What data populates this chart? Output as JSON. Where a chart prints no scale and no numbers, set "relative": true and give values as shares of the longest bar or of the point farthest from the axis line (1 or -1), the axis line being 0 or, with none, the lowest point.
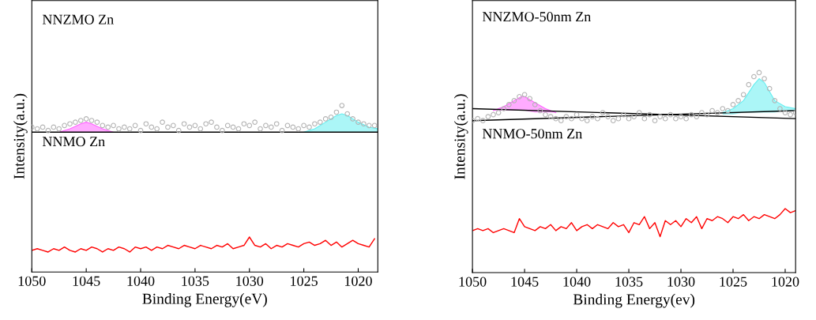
{
  "chart_data": [
    {
      "type": "line",
      "relative": true,
      "xlabel": "Binding Energy(eV)",
      "ylabel": "Intensity(a.u.)",
      "xlim": [
        1050,
        1018.2
      ],
      "xticks": [
        1050,
        1045,
        1040,
        1035,
        1030,
        1025,
        1020
      ],
      "tick_labels": "x",
      "annotations": [
        "NNZMO Zn",
        "NNMO Zn"
      ],
      "x": [
        1050,
        1049.5,
        1049,
        1048.5,
        1048,
        1047.5,
        1047,
        1046.5,
        1046,
        1045.5,
        1045,
        1044.5,
        1044,
        1043.5,
        1043,
        1042.5,
        1042,
        1041.5,
        1041,
        1040.5,
        1040,
        1039.5,
        1039,
        1038.5,
        1038,
        1037.5,
        1037,
        1036.5,
        1036,
        1035.5,
        1035,
        1034.5,
        1034,
        1033.5,
        1033,
        1032.5,
        1032,
        1031.5,
        1031,
        1030.5,
        1030,
        1029.5,
        1029,
        1028.5,
        1028,
        1027.5,
        1027,
        1026.5,
        1026,
        1025.5,
        1025,
        1024.5,
        1024,
        1023.5,
        1023,
        1022.5,
        1022,
        1021.5,
        1021,
        1020.5,
        1020,
        1019.5,
        1019,
        1018.5
      ],
      "series": [
        {
          "color": "#ff66ff",
          "x": [
            1047.5,
            1046.5,
            1045.5,
            1045,
            1044.5,
            1043.5,
            1042.5
          ],
          "values": [
            0.84,
            0.86,
            0.89,
            0.9,
            0.89,
            0.86,
            0.84
          ],
          "lower": [
            0.84,
            0.84,
            0.84,
            0.84,
            0.84,
            0.84,
            0.84
          ],
          "upper": [
            0.84,
            0.86,
            0.89,
            0.9,
            0.89,
            0.86,
            0.84
          ]
        },
        {
          "color": "#66eef0",
          "x": [
            1025,
            1024,
            1023,
            1022,
            1021.5,
            1021,
            1020,
            1019,
            1018.2
          ],
          "values": [
            0.84,
            0.86,
            0.9,
            0.94,
            0.95,
            0.94,
            0.9,
            0.87,
            0.86
          ],
          "lower": [
            0.84,
            0.84,
            0.84,
            0.84,
            0.84,
            0.84,
            0.84,
            0.84,
            0.84
          ],
          "upper": [
            0.84,
            0.86,
            0.9,
            0.94,
            0.95,
            0.94,
            0.9,
            0.87,
            0.86
          ]
        },
        {
          "color": "#000000",
          "x": [
            1050,
            1018.2
          ],
          "values": [
            0.84,
            0.84
          ]
        },
        {
          "type": "scatter",
          "color": "#b4b4b4",
          "marker": "circle",
          "values": [
            0.87,
            0.86,
            0.87,
            0.85,
            0.87,
            0.86,
            0.88,
            0.89,
            0.9,
            0.91,
            0.92,
            0.91,
            0.9,
            0.88,
            0.87,
            0.88,
            0.86,
            0.87,
            0.86,
            0.88,
            0.85,
            0.89,
            0.87,
            0.86,
            0.9,
            0.87,
            0.88,
            0.85,
            0.89,
            0.87,
            0.88,
            0.86,
            0.89,
            0.9,
            0.87,
            0.85,
            0.88,
            0.87,
            0.86,
            0.89,
            0.88,
            0.9,
            0.86,
            0.88,
            0.87,
            0.89,
            0.85,
            0.88,
            0.87,
            0.86,
            0.88,
            0.87,
            0.89,
            0.9,
            0.92,
            0.93,
            0.96,
            1.0,
            0.95,
            0.92,
            0.9,
            0.89,
            0.88,
            0.88
          ]
        },
        {
          "color": "#ff0000",
          "values": [
            0.13,
            0.14,
            0.13,
            0.12,
            0.14,
            0.13,
            0.15,
            0.13,
            0.12,
            0.14,
            0.13,
            0.15,
            0.14,
            0.12,
            0.14,
            0.13,
            0.15,
            0.14,
            0.12,
            0.15,
            0.14,
            0.15,
            0.13,
            0.15,
            0.14,
            0.16,
            0.15,
            0.14,
            0.16,
            0.15,
            0.14,
            0.16,
            0.15,
            0.14,
            0.16,
            0.15,
            0.17,
            0.14,
            0.15,
            0.16,
            0.21,
            0.16,
            0.15,
            0.17,
            0.14,
            0.16,
            0.15,
            0.17,
            0.16,
            0.15,
            0.17,
            0.18,
            0.16,
            0.17,
            0.19,
            0.16,
            0.18,
            0.15,
            0.17,
            0.19,
            0.17,
            0.16,
            0.15,
            0.2
          ]
        }
      ]
    },
    {
      "type": "line",
      "relative": true,
      "xlabel": "Binding Energy(ev)",
      "ylabel": "Intensity(a.u.)",
      "xlim": [
        1050,
        1019
      ],
      "xticks": [
        1050,
        1045,
        1040,
        1035,
        1030,
        1025,
        1020
      ],
      "tick_labels": "x",
      "annotations": [
        "NNZMO-50nm Zn",
        "NNMO-50nm Zn"
      ],
      "x": [
        1050,
        1049.5,
        1049,
        1048.5,
        1048,
        1047.5,
        1047,
        1046.5,
        1046,
        1045.5,
        1045,
        1044.5,
        1044,
        1043.5,
        1043,
        1042.5,
        1042,
        1041.5,
        1041,
        1040.5,
        1040,
        1039.5,
        1039,
        1038.5,
        1038,
        1037.5,
        1037,
        1036.5,
        1036,
        1035.5,
        1035,
        1034.5,
        1034,
        1033.5,
        1033,
        1032.5,
        1032,
        1031.5,
        1031,
        1030.5,
        1030,
        1029.5,
        1029,
        1028.5,
        1028,
        1027.5,
        1027,
        1026.5,
        1026,
        1025.5,
        1025,
        1024.5,
        1024,
        1023.5,
        1023,
        1022.5,
        1022,
        1021.5,
        1021,
        1020.5,
        1020,
        1019.5,
        1019
      ],
      "series": [
        {
          "color": "#ff66ff",
          "x": [
            1048,
            1047,
            1046,
            1045.3,
            1045,
            1044,
            1043,
            1042
          ],
          "values": [
            0.81,
            0.83,
            0.86,
            0.88,
            0.88,
            0.85,
            0.82,
            0.8
          ],
          "lower": [
            0.81,
            0.81,
            0.81,
            0.81,
            0.81,
            0.8,
            0.8,
            0.8
          ],
          "upper": [
            0.81,
            0.83,
            0.86,
            0.88,
            0.88,
            0.85,
            0.82,
            0.8
          ]
        },
        {
          "color": "#66eef0",
          "x": [
            1026,
            1025,
            1024,
            1023,
            1022.5,
            1022,
            1021,
            1020,
            1019
          ],
          "values": [
            0.8,
            0.82,
            0.86,
            0.94,
            0.97,
            0.95,
            0.86,
            0.83,
            0.82
          ],
          "lower": [
            0.79,
            0.79,
            0.8,
            0.8,
            0.8,
            0.8,
            0.8,
            0.81,
            0.81
          ],
          "upper": [
            0.8,
            0.82,
            0.86,
            0.94,
            0.97,
            0.95,
            0.86,
            0.83,
            0.82
          ]
        },
        {
          "color": "#000000",
          "x": [
            1050,
            1019
          ],
          "values": [
            0.82,
            0.77
          ]
        },
        {
          "color": "#000000",
          "x": [
            1050,
            1019
          ],
          "values": [
            0.76,
            0.81
          ]
        },
        {
          "type": "scatter",
          "color": "#b4b4b4",
          "marker": "circle",
          "values": [
            0.76,
            0.77,
            0.76,
            0.78,
            0.79,
            0.8,
            0.82,
            0.84,
            0.86,
            0.88,
            0.89,
            0.87,
            0.84,
            0.81,
            0.79,
            0.78,
            0.77,
            0.76,
            0.78,
            0.77,
            0.79,
            0.77,
            0.76,
            0.78,
            0.77,
            0.8,
            0.78,
            0.76,
            0.77,
            0.79,
            0.77,
            0.78,
            0.8,
            0.77,
            0.79,
            0.76,
            0.78,
            0.77,
            0.79,
            0.77,
            0.78,
            0.77,
            0.79,
            0.78,
            0.8,
            0.79,
            0.81,
            0.8,
            0.82,
            0.81,
            0.84,
            0.86,
            0.89,
            0.94,
            0.98,
            1.0,
            0.97,
            0.92,
            0.86,
            0.82,
            0.8,
            0.79,
            0.8
          ]
        },
        {
          "color": "#ff0000",
          "values": [
            0.21,
            0.22,
            0.21,
            0.22,
            0.2,
            0.21,
            0.22,
            0.21,
            0.2,
            0.27,
            0.23,
            0.22,
            0.21,
            0.23,
            0.22,
            0.24,
            0.21,
            0.23,
            0.22,
            0.25,
            0.21,
            0.23,
            0.24,
            0.22,
            0.24,
            0.23,
            0.22,
            0.25,
            0.23,
            0.24,
            0.2,
            0.25,
            0.24,
            0.28,
            0.22,
            0.25,
            0.18,
            0.26,
            0.24,
            0.26,
            0.23,
            0.27,
            0.25,
            0.28,
            0.22,
            0.27,
            0.26,
            0.28,
            0.27,
            0.25,
            0.28,
            0.27,
            0.29,
            0.26,
            0.28,
            0.27,
            0.29,
            0.28,
            0.27,
            0.29,
            0.32,
            0.3,
            0.31
          ]
        }
      ]
    }
  ]
}
